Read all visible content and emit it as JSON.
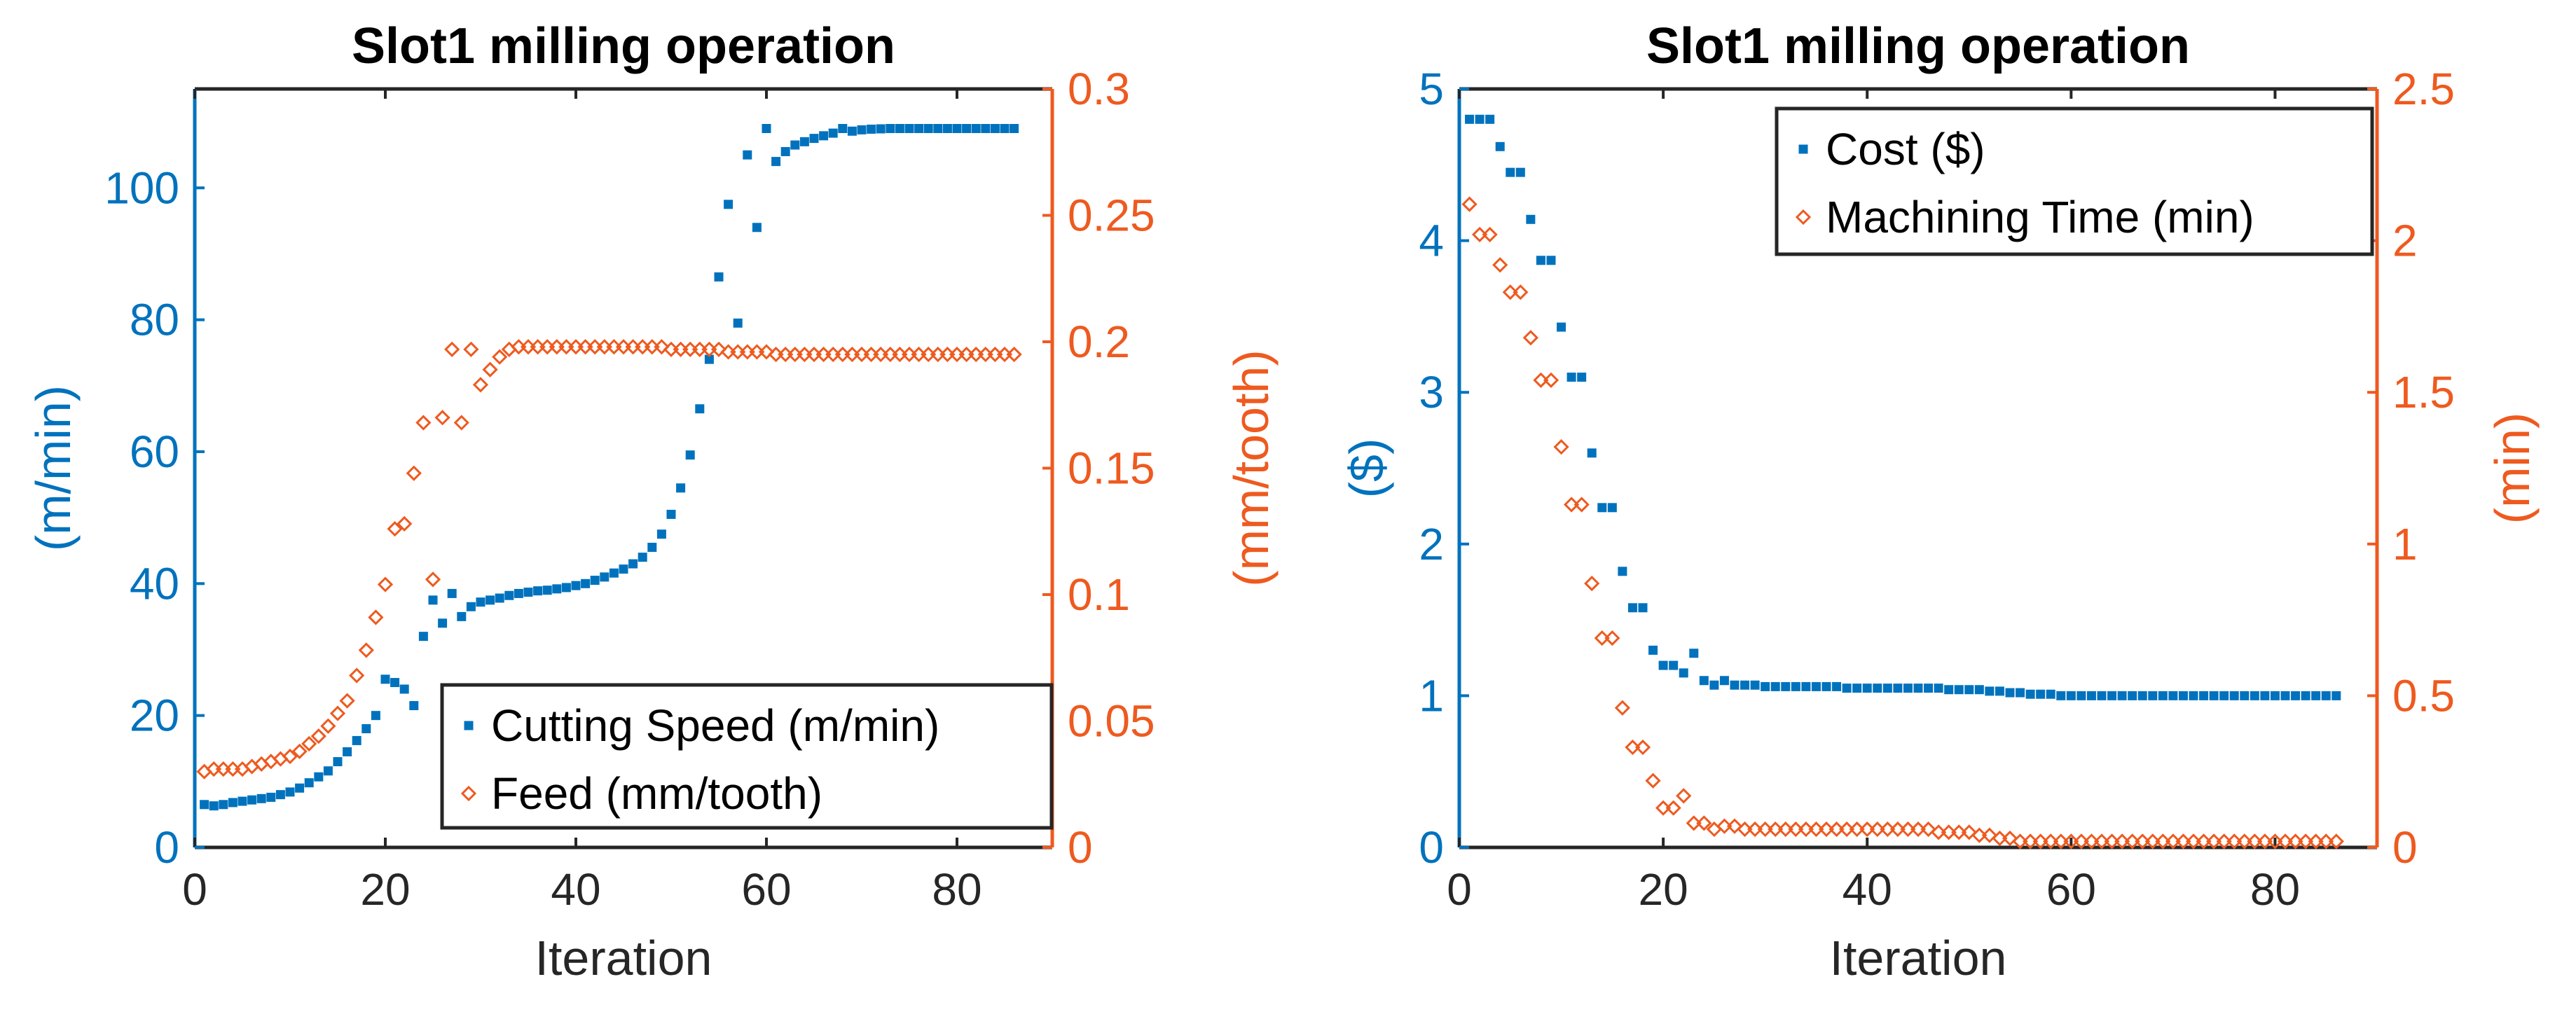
{
  "chart_data": [
    {
      "type": "scatter",
      "title": "Slot1 milling operation",
      "xlabel": "Iteration",
      "ylabel_left": "(m/min)",
      "ylabel_right": "(mm/tooth)",
      "xlim": [
        0,
        90
      ],
      "ylim_left": [
        0,
        115
      ],
      "ylim_right": [
        0,
        0.3
      ],
      "xticks": [
        "0",
        "20",
        "40",
        "60",
        "80"
      ],
      "yticks_left": [
        "0",
        "20",
        "40",
        "60",
        "80",
        "100"
      ],
      "yticks_right": [
        "0",
        "0.05",
        "0.1",
        "0.15",
        "0.2",
        "0.25",
        "0.3"
      ],
      "left_color": "#0072BD",
      "right_color": "#EE5A1F",
      "legend_position": "bottom-right",
      "series": [
        {
          "name": "Cutting Speed (m/min)",
          "axis": "left",
          "marker": "square",
          "values": [
            6.5,
            6.3,
            6.5,
            6.8,
            7.0,
            7.2,
            7.4,
            7.6,
            8.0,
            8.4,
            9.0,
            9.8,
            10.7,
            11.6,
            13.0,
            14.5,
            16.2,
            18.0,
            20.0,
            25.5,
            25.0,
            24.0,
            21.5,
            32.0,
            37.5,
            34.0,
            38.5,
            35.0,
            36.5,
            37.2,
            37.5,
            37.8,
            38.2,
            38.5,
            38.7,
            38.9,
            39.0,
            39.2,
            39.4,
            39.7,
            40.0,
            40.5,
            41.0,
            41.6,
            42.2,
            43.0,
            44.0,
            45.5,
            47.5,
            50.5,
            54.5,
            59.5,
            66.5,
            74.0,
            86.5,
            97.5,
            79.5,
            105.0,
            94.0,
            109.0,
            104.0,
            105.5,
            106.5,
            107.0,
            107.5,
            107.9,
            108.3,
            109.0,
            108.6,
            108.8,
            108.9,
            108.95,
            109.0,
            109.0,
            109.0,
            109.0,
            109.0,
            109.0,
            109.0,
            109.0,
            109.0,
            109.0,
            109.0,
            109.0,
            109.0,
            109.0
          ]
        },
        {
          "name": "Feed (mm/tooth)",
          "axis": "right",
          "marker": "diamond",
          "values": [
            0.03,
            0.031,
            0.031,
            0.031,
            0.031,
            0.032,
            0.033,
            0.034,
            0.035,
            0.036,
            0.038,
            0.041,
            0.044,
            0.048,
            0.053,
            0.058,
            0.068,
            0.078,
            0.091,
            0.104,
            0.126,
            0.128,
            0.148,
            0.168,
            0.106,
            0.17,
            0.197,
            0.168,
            0.197,
            0.183,
            0.189,
            0.194,
            0.197,
            0.198,
            0.198,
            0.198,
            0.198,
            0.198,
            0.198,
            0.198,
            0.198,
            0.198,
            0.198,
            0.198,
            0.198,
            0.198,
            0.198,
            0.198,
            0.198,
            0.197,
            0.197,
            0.197,
            0.197,
            0.197,
            0.197,
            0.196,
            0.196,
            0.196,
            0.196,
            0.196,
            0.195,
            0.195,
            0.195,
            0.195,
            0.195,
            0.195,
            0.195,
            0.195,
            0.195,
            0.195,
            0.195,
            0.195,
            0.195,
            0.195,
            0.195,
            0.195,
            0.195,
            0.195,
            0.195,
            0.195,
            0.195,
            0.195,
            0.195,
            0.195,
            0.195,
            0.195
          ]
        }
      ]
    },
    {
      "type": "scatter",
      "title": "Slot1 milling operation",
      "xlabel": "Iteration",
      "ylabel_left": "($)",
      "ylabel_right": "(min)",
      "xlim": [
        0,
        90
      ],
      "ylim_left": [
        0,
        5
      ],
      "ylim_right": [
        0,
        2.5
      ],
      "xticks": [
        "0",
        "20",
        "40",
        "60",
        "80"
      ],
      "yticks_left": [
        "0",
        "1",
        "2",
        "3",
        "4",
        "5"
      ],
      "yticks_right": [
        "0",
        "0.5",
        "1",
        "1.5",
        "2",
        "2.5"
      ],
      "left_color": "#0072BD",
      "right_color": "#EE5A1F",
      "legend_position": "top-right",
      "series": [
        {
          "name": "Cost ($)",
          "axis": "left",
          "marker": "square",
          "values": [
            4.8,
            4.8,
            4.8,
            4.62,
            4.45,
            4.45,
            4.14,
            3.87,
            3.87,
            3.43,
            3.1,
            3.1,
            2.6,
            2.24,
            2.24,
            1.82,
            1.58,
            1.58,
            1.3,
            1.2,
            1.2,
            1.15,
            1.28,
            1.1,
            1.07,
            1.1,
            1.07,
            1.07,
            1.07,
            1.06,
            1.06,
            1.06,
            1.06,
            1.06,
            1.06,
            1.06,
            1.06,
            1.05,
            1.05,
            1.05,
            1.05,
            1.05,
            1.05,
            1.05,
            1.05,
            1.05,
            1.05,
            1.04,
            1.04,
            1.04,
            1.04,
            1.03,
            1.03,
            1.02,
            1.02,
            1.01,
            1.01,
            1.01,
            1.0,
            1.0,
            1.0,
            1.0,
            1.0,
            1.0,
            1.0,
            1.0,
            1.0,
            1.0,
            1.0,
            1.0,
            1.0,
            1.0,
            1.0,
            1.0,
            1.0,
            1.0,
            1.0,
            1.0,
            1.0,
            1.0,
            1.0,
            1.0,
            1.0,
            1.0,
            1.0,
            1.0
          ]
        },
        {
          "name": "Machining Time (min)",
          "axis": "right",
          "marker": "diamond",
          "values": [
            2.12,
            2.02,
            2.02,
            1.92,
            1.83,
            1.83,
            1.68,
            1.54,
            1.54,
            1.32,
            1.13,
            1.13,
            0.87,
            0.69,
            0.69,
            0.46,
            0.33,
            0.33,
            0.22,
            0.13,
            0.13,
            0.17,
            0.08,
            0.08,
            0.06,
            0.07,
            0.07,
            0.06,
            0.06,
            0.06,
            0.06,
            0.06,
            0.06,
            0.06,
            0.06,
            0.06,
            0.06,
            0.06,
            0.06,
            0.06,
            0.06,
            0.06,
            0.06,
            0.06,
            0.06,
            0.06,
            0.05,
            0.05,
            0.05,
            0.05,
            0.04,
            0.04,
            0.03,
            0.03,
            0.02,
            0.02,
            0.02,
            0.02,
            0.02,
            0.02,
            0.02,
            0.02,
            0.02,
            0.02,
            0.02,
            0.02,
            0.02,
            0.02,
            0.02,
            0.02,
            0.02,
            0.02,
            0.02,
            0.02,
            0.02,
            0.02,
            0.02,
            0.02,
            0.02,
            0.02,
            0.02,
            0.02,
            0.02,
            0.02,
            0.02,
            0.02
          ]
        }
      ]
    }
  ]
}
